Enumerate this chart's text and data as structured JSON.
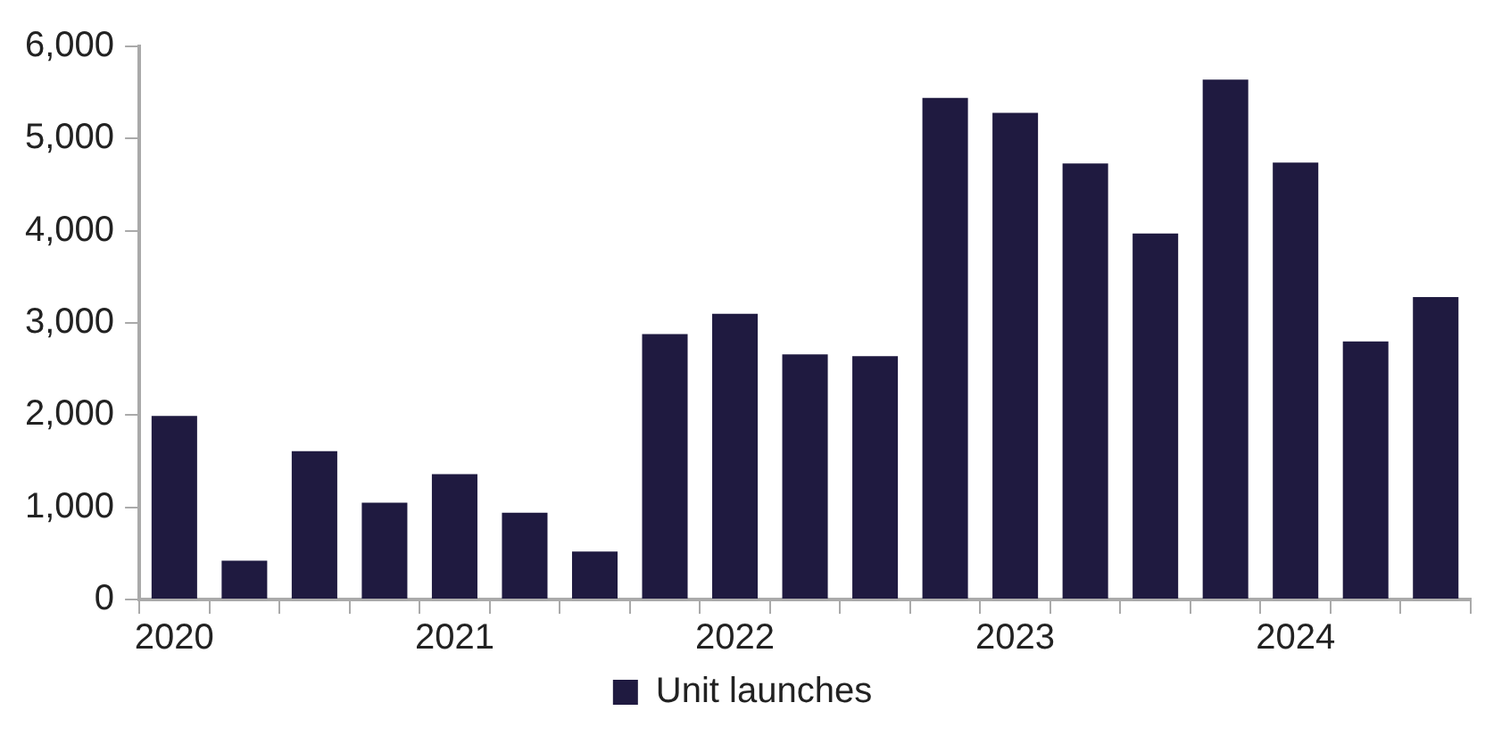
{
  "chart_data": {
    "type": "bar",
    "categories": [
      "2020",
      null,
      null,
      null,
      "2021",
      null,
      null,
      null,
      "2022",
      null,
      null,
      null,
      "2023",
      null,
      null,
      null,
      "2024",
      null,
      null
    ],
    "series": [
      {
        "name": "Unit launches",
        "color": "#1f1a40",
        "values": [
          1990,
          420,
          1610,
          1050,
          1360,
          940,
          520,
          2880,
          3100,
          2660,
          2640,
          5440,
          5280,
          4730,
          3970,
          5640,
          4740,
          2800,
          3280
        ]
      }
    ],
    "ylim": [
      0,
      6000
    ],
    "yticks": [
      {
        "value": 0,
        "label": "0"
      },
      {
        "value": 1000,
        "label": "1,000"
      },
      {
        "value": 2000,
        "label": "2,000"
      },
      {
        "value": 3000,
        "label": "3,000"
      },
      {
        "value": 4000,
        "label": "4,000"
      },
      {
        "value": 5000,
        "label": "5,000"
      },
      {
        "value": 6000,
        "label": "6,000"
      }
    ],
    "grid": false,
    "legend": "bottom"
  }
}
